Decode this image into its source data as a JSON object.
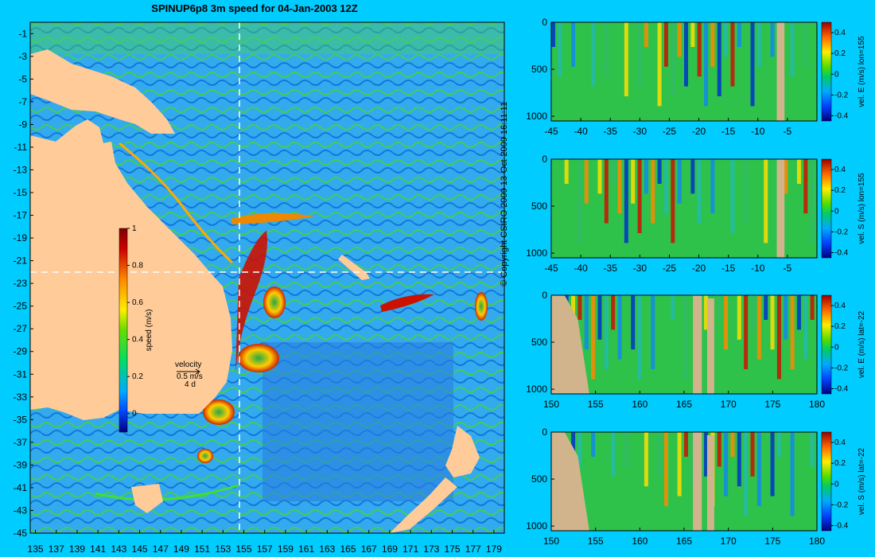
{
  "header": {
    "title": "SPINUP6p8 3m speed for 04-Jan-2003 12Z"
  },
  "footer": {
    "copyright": "© Copyright CSIRO 2009   13-Oct-2009 16:11:11"
  },
  "map": {
    "x_ticks": [
      "135",
      "137",
      "139",
      "141",
      "143",
      "145",
      "147",
      "149",
      "151",
      "153",
      "155",
      "157",
      "159",
      "161",
      "163",
      "165",
      "167",
      "169",
      "171",
      "173",
      "175",
      "177",
      "179"
    ],
    "y_ticks": [
      "-1",
      "-3",
      "-5",
      "-7",
      "-9",
      "-11",
      "-13",
      "-15",
      "-17",
      "-19",
      "-21",
      "-23",
      "-25",
      "-27",
      "-29",
      "-31",
      "-33",
      "-35",
      "-37",
      "-39",
      "-41",
      "-43",
      "-45"
    ],
    "section_lon": 155,
    "section_lat": -22,
    "colorbar": {
      "label": "speed (m/s)",
      "ticks": [
        "1",
        "0.8",
        "0.6",
        "0.4",
        "0.2",
        "0"
      ],
      "range": [
        -0.1,
        1
      ]
    },
    "velocity_key": {
      "title": "velocity",
      "scale": "0.5 m/s",
      "period": "4 d"
    }
  },
  "chart_data": [
    {
      "type": "heatmap",
      "title": "",
      "xlabel": "",
      "ylabel": "vel. E (m/s) lon=155",
      "x_ticks": [
        "-45",
        "-40",
        "-35",
        "-30",
        "-25",
        "-20",
        "-15",
        "-10",
        "-5"
      ],
      "y_ticks": [
        "0",
        "500",
        "1000"
      ],
      "xlim": [
        -45,
        0
      ],
      "ylim": [
        1050,
        0
      ],
      "colorbar": {
        "ticks": [
          "0.4",
          "0.2",
          "0",
          "-0.2",
          "-0.4"
        ],
        "range": [
          -0.45,
          0.5
        ]
      }
    },
    {
      "type": "heatmap",
      "title": "",
      "xlabel": "",
      "ylabel": "vel. S (m/s) lon=155",
      "x_ticks": [
        "-45",
        "-40",
        "-35",
        "-30",
        "-25",
        "-20",
        "-15",
        "-10",
        "-5"
      ],
      "y_ticks": [
        "0",
        "500",
        "1000"
      ],
      "xlim": [
        -45,
        0
      ],
      "ylim": [
        1050,
        0
      ],
      "colorbar": {
        "ticks": [
          "0.4",
          "0.2",
          "0",
          "-0.2",
          "-0.4"
        ],
        "range": [
          -0.45,
          0.5
        ]
      }
    },
    {
      "type": "heatmap",
      "title": "",
      "xlabel": "",
      "ylabel": "vel. E (m/s) lat=-22",
      "x_ticks": [
        "150",
        "155",
        "160",
        "165",
        "170",
        "175",
        "180"
      ],
      "y_ticks": [
        "0",
        "500",
        "1000"
      ],
      "xlim": [
        150,
        180
      ],
      "ylim": [
        1050,
        0
      ],
      "colorbar": {
        "ticks": [
          "0.4",
          "0.2",
          "0",
          "-0.2",
          "-0.4"
        ],
        "range": [
          -0.45,
          0.5
        ]
      }
    },
    {
      "type": "heatmap",
      "title": "",
      "xlabel": "",
      "ylabel": "vel. S (m/s) lat=-22",
      "x_ticks": [
        "150",
        "155",
        "160",
        "165",
        "170",
        "175",
        "180"
      ],
      "y_ticks": [
        "0",
        "500",
        "1000"
      ],
      "xlim": [
        150,
        180
      ],
      "ylim": [
        1050,
        0
      ],
      "colorbar": {
        "ticks": [
          "0.4",
          "0.2",
          "0",
          "-0.2",
          "-0.4"
        ],
        "range": [
          -0.45,
          0.5
        ]
      }
    }
  ],
  "colors": {
    "background": "#00ccff",
    "land": "#ffcc99",
    "section_land": "#d2b48c"
  }
}
